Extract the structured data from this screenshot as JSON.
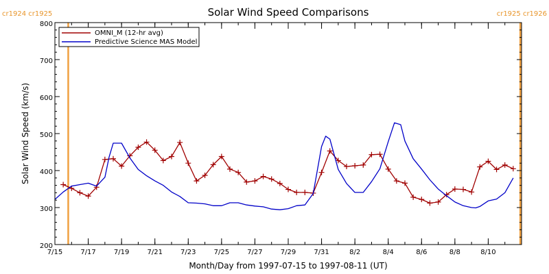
{
  "chart_data": {
    "type": "line",
    "title": "Solar Wind Speed Comparisons",
    "xlabel": "Month/Day from 1997-07-15 to 1997-08-11 (UT)",
    "ylabel": "Solar Wind Speed (km/s)",
    "xlim": [
      "1997-07-15",
      "1997-08-11"
    ],
    "ylim": [
      200,
      800
    ],
    "yticks": [
      200,
      300,
      400,
      500,
      600,
      700,
      800
    ],
    "xticks": [
      {
        "date": "1997-07-15",
        "label": "7/15"
      },
      {
        "date": "1997-07-17",
        "label": "7/17"
      },
      {
        "date": "1997-07-19",
        "label": "7/19"
      },
      {
        "date": "1997-07-21",
        "label": "7/21"
      },
      {
        "date": "1997-07-23",
        "label": "7/23"
      },
      {
        "date": "1997-07-25",
        "label": "7/25"
      },
      {
        "date": "1997-07-27",
        "label": "7/27"
      },
      {
        "date": "1997-07-29",
        "label": "7/29"
      },
      {
        "date": "1997-07-31",
        "label": "7/31"
      },
      {
        "date": "1997-08-02",
        "label": "8/2"
      },
      {
        "date": "1997-08-04",
        "label": "8/4"
      },
      {
        "date": "1997-08-06",
        "label": "8/6"
      },
      {
        "date": "1997-08-08",
        "label": "8/8"
      },
      {
        "date": "1997-08-10",
        "label": "8/10"
      }
    ],
    "grid": false,
    "legend_position": "top-left",
    "carrington_markers": [
      {
        "date": "1997-07-15 19:12",
        "label": "cr1924 cr1925",
        "color": "#f0a040",
        "side": "left"
      },
      {
        "date": "1997-08-11 22:10",
        "label": "cr1925 cr1926",
        "color": "#f0a040",
        "side": "right"
      }
    ],
    "series": [
      {
        "name": "OMNI_M (12-hr avg)",
        "color": "#a00000",
        "marker": "plus",
        "points": [
          [
            "1997-07-15 12:00",
            362
          ],
          [
            "1997-07-16 00:00",
            352
          ],
          [
            "1997-07-16 12:00",
            340
          ],
          [
            "1997-07-17 00:00",
            331
          ],
          [
            "1997-07-17 12:00",
            355
          ],
          [
            "1997-07-18 00:00",
            430
          ],
          [
            "1997-07-18 12:00",
            432
          ],
          [
            "1997-07-19 00:00",
            412
          ],
          [
            "1997-07-19 12:00",
            440
          ],
          [
            "1997-07-20 00:00",
            463
          ],
          [
            "1997-07-20 12:00",
            477
          ],
          [
            "1997-07-21 00:00",
            455
          ],
          [
            "1997-07-21 12:00",
            427
          ],
          [
            "1997-07-22 00:00",
            438
          ],
          [
            "1997-07-22 12:00",
            476
          ],
          [
            "1997-07-23 00:00",
            420
          ],
          [
            "1997-07-23 12:00",
            372
          ],
          [
            "1997-07-24 00:00",
            387
          ],
          [
            "1997-07-24 12:00",
            416
          ],
          [
            "1997-07-25 00:00",
            438
          ],
          [
            "1997-07-25 12:00",
            404
          ],
          [
            "1997-07-26 00:00",
            395
          ],
          [
            "1997-07-26 12:00",
            369
          ],
          [
            "1997-07-27 00:00",
            372
          ],
          [
            "1997-07-27 12:00",
            384
          ],
          [
            "1997-07-28 00:00",
            377
          ],
          [
            "1997-07-28 12:00",
            365
          ],
          [
            "1997-07-29 00:00",
            349
          ],
          [
            "1997-07-29 12:00",
            341
          ],
          [
            "1997-07-30 00:00",
            341
          ],
          [
            "1997-07-30 12:00",
            339
          ],
          [
            "1997-07-31 00:00",
            395
          ],
          [
            "1997-07-31 12:00",
            453
          ],
          [
            "1997-08-01 00:00",
            427
          ],
          [
            "1997-08-01 12:00",
            411
          ],
          [
            "1997-08-02 00:00",
            413
          ],
          [
            "1997-08-02 12:00",
            415
          ],
          [
            "1997-08-03 00:00",
            443
          ],
          [
            "1997-08-03 12:00",
            444
          ],
          [
            "1997-08-04 00:00",
            404
          ],
          [
            "1997-08-04 12:00",
            372
          ],
          [
            "1997-08-05 00:00",
            366
          ],
          [
            "1997-08-05 12:00",
            328
          ],
          [
            "1997-08-06 00:00",
            322
          ],
          [
            "1997-08-06 12:00",
            312
          ],
          [
            "1997-08-07 00:00",
            315
          ],
          [
            "1997-08-07 12:00",
            335
          ],
          [
            "1997-08-08 00:00",
            350
          ],
          [
            "1997-08-08 12:00",
            349
          ],
          [
            "1997-08-09 00:00",
            342
          ],
          [
            "1997-08-09 12:00",
            410
          ],
          [
            "1997-08-10 00:00",
            425
          ],
          [
            "1997-08-10 12:00",
            403
          ],
          [
            "1997-08-11 00:00",
            415
          ],
          [
            "1997-08-11 12:00",
            405
          ]
        ]
      },
      {
        "name": "Predictive Science MAS Model",
        "color": "#0000c8",
        "marker": "none",
        "points": [
          [
            "1997-07-15 00:00",
            322
          ],
          [
            "1997-07-15 12:00",
            342
          ],
          [
            "1997-07-16 00:00",
            358
          ],
          [
            "1997-07-16 12:00",
            362
          ],
          [
            "1997-07-17 00:00",
            366
          ],
          [
            "1997-07-17 12:00",
            358
          ],
          [
            "1997-07-18 00:00",
            382
          ],
          [
            "1997-07-18 06:00",
            436
          ],
          [
            "1997-07-18 12:00",
            474
          ],
          [
            "1997-07-19 00:00",
            474
          ],
          [
            "1997-07-19 12:00",
            434
          ],
          [
            "1997-07-20 00:00",
            403
          ],
          [
            "1997-07-20 12:00",
            386
          ],
          [
            "1997-07-21 00:00",
            372
          ],
          [
            "1997-07-21 12:00",
            360
          ],
          [
            "1997-07-22 00:00",
            342
          ],
          [
            "1997-07-22 12:00",
            330
          ],
          [
            "1997-07-23 00:00",
            313
          ],
          [
            "1997-07-23 12:00",
            312
          ],
          [
            "1997-07-24 00:00",
            310
          ],
          [
            "1997-07-24 12:00",
            305
          ],
          [
            "1997-07-25 00:00",
            305
          ],
          [
            "1997-07-25 12:00",
            313
          ],
          [
            "1997-07-26 00:00",
            313
          ],
          [
            "1997-07-26 12:00",
            307
          ],
          [
            "1997-07-27 00:00",
            304
          ],
          [
            "1997-07-27 12:00",
            302
          ],
          [
            "1997-07-28 00:00",
            296
          ],
          [
            "1997-07-28 12:00",
            294
          ],
          [
            "1997-07-29 00:00",
            297
          ],
          [
            "1997-07-29 12:00",
            305
          ],
          [
            "1997-07-30 00:00",
            307
          ],
          [
            "1997-07-30 12:00",
            338
          ],
          [
            "1997-07-31 00:00",
            465
          ],
          [
            "1997-07-31 06:00",
            493
          ],
          [
            "1997-07-31 12:00",
            485
          ],
          [
            "1997-08-01 00:00",
            403
          ],
          [
            "1997-08-01 12:00",
            365
          ],
          [
            "1997-08-02 00:00",
            341
          ],
          [
            "1997-08-02 12:00",
            341
          ],
          [
            "1997-08-03 00:00",
            370
          ],
          [
            "1997-08-03 12:00",
            405
          ],
          [
            "1997-08-04 00:00",
            478
          ],
          [
            "1997-08-04 09:00",
            529
          ],
          [
            "1997-08-04 18:00",
            524
          ],
          [
            "1997-08-05 00:00",
            480
          ],
          [
            "1997-08-05 12:00",
            432
          ],
          [
            "1997-08-06 00:00",
            404
          ],
          [
            "1997-08-06 12:00",
            375
          ],
          [
            "1997-08-07 00:00",
            350
          ],
          [
            "1997-08-07 12:00",
            332
          ],
          [
            "1997-08-08 00:00",
            315
          ],
          [
            "1997-08-08 12:00",
            305
          ],
          [
            "1997-08-09 00:00",
            300
          ],
          [
            "1997-08-09 06:00",
            299
          ],
          [
            "1997-08-09 12:00",
            303
          ],
          [
            "1997-08-10 00:00",
            318
          ],
          [
            "1997-08-10 12:00",
            323
          ],
          [
            "1997-08-11 00:00",
            340
          ],
          [
            "1997-08-11 12:00",
            380
          ]
        ]
      }
    ]
  }
}
